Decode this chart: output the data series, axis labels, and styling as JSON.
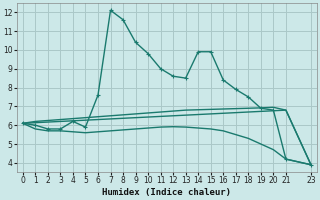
{
  "xlabel": "Humidex (Indice chaleur)",
  "bg_color": "#cce8e8",
  "grid_color": "#aac8c8",
  "line_color": "#1a7a6e",
  "xlim": [
    -0.5,
    23.5
  ],
  "ylim": [
    3.5,
    12.5
  ],
  "xticks": [
    0,
    1,
    2,
    3,
    4,
    5,
    6,
    7,
    8,
    9,
    10,
    11,
    12,
    13,
    14,
    15,
    16,
    17,
    18,
    19,
    20,
    21,
    23
  ],
  "yticks": [
    4,
    5,
    6,
    7,
    8,
    9,
    10,
    11,
    12
  ],
  "series1_x": [
    0,
    1,
    2,
    3,
    4,
    5,
    6,
    7,
    8,
    9,
    10,
    11,
    12,
    13,
    14,
    15,
    16,
    17,
    18,
    19,
    20,
    21,
    23
  ],
  "series1_y": [
    6.1,
    6.0,
    5.8,
    5.8,
    6.2,
    5.9,
    7.6,
    12.1,
    11.6,
    10.4,
    9.8,
    9.0,
    8.6,
    8.5,
    9.9,
    9.9,
    8.4,
    7.9,
    7.5,
    6.9,
    6.8,
    4.2,
    3.9
  ],
  "series2_x": [
    0,
    1,
    2,
    3,
    4,
    5,
    6,
    7,
    8,
    9,
    10,
    11,
    12,
    13,
    14,
    15,
    16,
    17,
    18,
    19,
    20,
    21,
    23
  ],
  "series2_y": [
    6.1,
    6.2,
    6.25,
    6.3,
    6.35,
    6.4,
    6.45,
    6.5,
    6.55,
    6.6,
    6.65,
    6.7,
    6.75,
    6.8,
    6.82,
    6.84,
    6.86,
    6.88,
    6.9,
    6.92,
    6.95,
    6.8,
    3.9
  ],
  "series3_x": [
    0,
    1,
    2,
    3,
    4,
    5,
    6,
    7,
    8,
    9,
    10,
    11,
    12,
    13,
    14,
    15,
    16,
    17,
    18,
    19,
    20,
    21,
    23
  ],
  "series3_y": [
    6.1,
    5.8,
    5.7,
    5.7,
    5.65,
    5.6,
    5.65,
    5.7,
    5.75,
    5.8,
    5.85,
    5.9,
    5.92,
    5.9,
    5.85,
    5.8,
    5.7,
    5.5,
    5.3,
    5.0,
    4.7,
    4.2,
    3.9
  ],
  "series4_x": [
    0,
    21,
    23
  ],
  "series4_y": [
    6.1,
    6.8,
    3.9
  ],
  "marker_size": 3.5,
  "line_width": 1.0
}
